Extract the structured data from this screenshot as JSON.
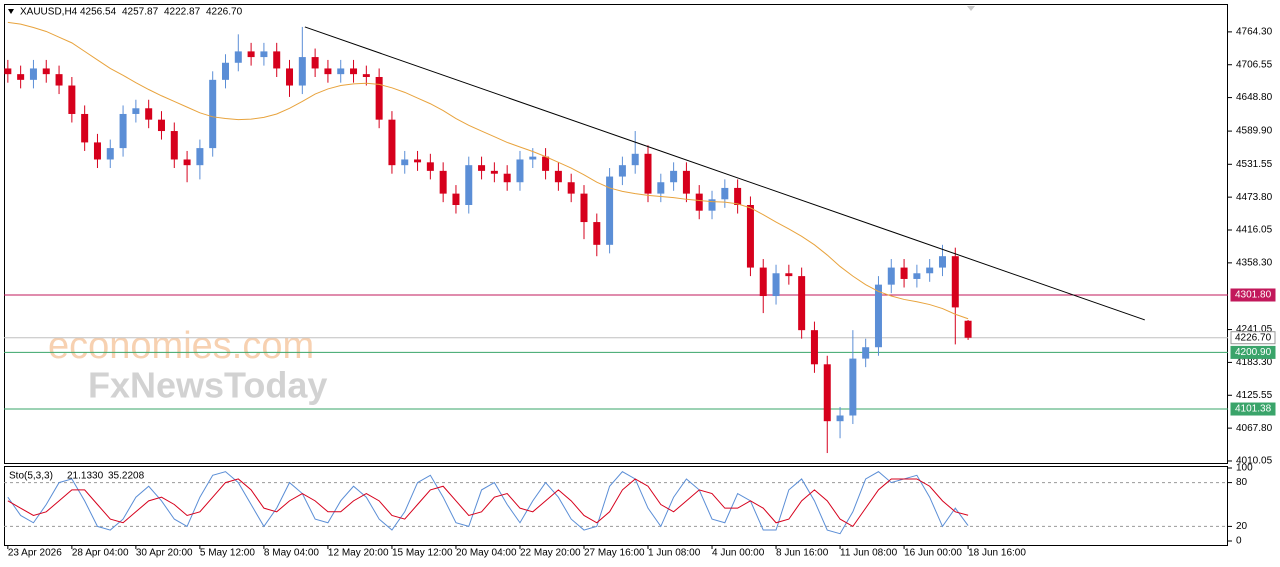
{
  "chart_data": {
    "type": "candlestick",
    "symbol": "XAUUSD,H4",
    "header_values": [
      4256.54,
      4257.87,
      4222.87,
      {
        "value": 4226.7,
        "label": "4226.70"
      }
    ],
    "watermarks": [
      "economies.com",
      "FxNewsToday"
    ],
    "categories": [
      "23 Apr 2026",
      null,
      null,
      null,
      null,
      "28 Apr 04:00",
      null,
      null,
      null,
      null,
      "30 Apr 20:00",
      null,
      null,
      null,
      null,
      "5 May 12:00",
      null,
      null,
      null,
      null,
      "8 May 04:00",
      null,
      null,
      null,
      null,
      "12 May 20:00",
      null,
      null,
      null,
      null,
      "15 May 12:00",
      null,
      null,
      null,
      null,
      "20 May 04:00",
      null,
      null,
      null,
      null,
      "22 May 20:00",
      null,
      null,
      null,
      null,
      "27 May 16:00",
      null,
      null,
      null,
      null,
      "1 Jun 08:00",
      null,
      null,
      null,
      null,
      "4 Jun 00:00",
      null,
      null,
      null,
      null,
      "8 Jun 16:00",
      null,
      null,
      null,
      null,
      "11 Jun 08:00",
      null,
      null,
      null,
      null,
      "16 Jun 00:00",
      null,
      null,
      null,
      null,
      "18 Jun 16:00"
    ],
    "open": [
      4700,
      4690,
      4680,
      4700,
      4690,
      4670,
      4620,
      4570,
      4540,
      4560,
      4620,
      4630,
      4610,
      4590,
      4540,
      4530,
      4560,
      4680,
      4710,
      4730,
      4720,
      4730,
      4700,
      4670,
      4720,
      4700,
      4690,
      4700,
      4690,
      4685,
      4610,
      4530,
      4540,
      4535,
      4520,
      4480,
      4460,
      4530,
      4520,
      4515,
      4500,
      4540,
      4545,
      4520,
      4500,
      4480,
      4430,
      4390,
      4510,
      4530,
      4550,
      4480,
      4500,
      4520,
      4480,
      4450,
      4470,
      4490,
      4460,
      4350,
      4300,
      4340,
      4335,
      4240,
      4180,
      4080,
      4090,
      4190,
      4210,
      4320,
      4350,
      4330,
      4340,
      4350,
      4370,
      4256.54
    ],
    "high": [
      4715,
      4705,
      4715,
      4715,
      4705,
      4685,
      4635,
      4585,
      4575,
      4635,
      4645,
      4645,
      4625,
      4605,
      4555,
      4575,
      4695,
      4725,
      4760,
      4745,
      4745,
      4745,
      4715,
      4773,
      4735,
      4715,
      4715,
      4715,
      4705,
      4700,
      4625,
      4555,
      4555,
      4550,
      4535,
      4495,
      4545,
      4545,
      4535,
      4530,
      4555,
      4560,
      4560,
      4535,
      4515,
      4495,
      4445,
      4525,
      4545,
      4590,
      4565,
      4515,
      4535,
      4535,
      4495,
      4485,
      4505,
      4505,
      4475,
      4365,
      4355,
      4355,
      4350,
      4255,
      4195,
      4105,
      4240,
      4225,
      4335,
      4365,
      4365,
      4355,
      4365,
      4390,
      4385,
      4257.87
    ],
    "low": [
      4675,
      4665,
      4665,
      4675,
      4655,
      4605,
      4555,
      4525,
      4525,
      4545,
      4605,
      4595,
      4575,
      4525,
      4500,
      4505,
      4545,
      4665,
      4695,
      4705,
      4705,
      4685,
      4650,
      4655,
      4685,
      4675,
      4675,
      4675,
      4670,
      4595,
      4515,
      4515,
      4520,
      4505,
      4465,
      4445,
      4445,
      4505,
      4500,
      4485,
      4485,
      4525,
      4505,
      4485,
      4465,
      4400,
      4370,
      4375,
      4495,
      4515,
      4465,
      4465,
      4485,
      4465,
      4435,
      4435,
      4455,
      4445,
      4335,
      4270,
      4285,
      4320,
      4225,
      4165,
      4024,
      4050,
      4075,
      4175,
      4195,
      4305,
      4315,
      4315,
      4325,
      4335,
      4215,
      4222.87
    ],
    "close": [
      4690,
      4680,
      4700,
      4690,
      4670,
      4620,
      4570,
      4540,
      4560,
      4620,
      4630,
      4610,
      4590,
      4540,
      4530,
      4560,
      4680,
      4710,
      4730,
      4720,
      4730,
      4700,
      4670,
      4720,
      4700,
      4690,
      4700,
      4690,
      4685,
      4610,
      4530,
      4540,
      4535,
      4520,
      4480,
      4460,
      4530,
      4520,
      4515,
      4500,
      4540,
      4545,
      4520,
      4500,
      4480,
      4430,
      4390,
      4510,
      4530,
      4550,
      4480,
      4500,
      4520,
      4480,
      4450,
      4470,
      4490,
      4460,
      4350,
      4300,
      4340,
      4335,
      4240,
      4180,
      4080,
      4090,
      4190,
      4210,
      4320,
      4350,
      4330,
      4340,
      4350,
      4370,
      4280,
      4226.7
    ],
    "bull_color": "#5b8ed6",
    "bear_color": "#d6001c",
    "ma": {
      "color": "#e8a33d",
      "values": [
        4781,
        4778,
        4772,
        4765,
        4755,
        4745,
        4730,
        4715,
        4700,
        4688,
        4675,
        4663,
        4652,
        4642,
        4632,
        4622,
        4615,
        4612,
        4610,
        4611,
        4614,
        4620,
        4630,
        4642,
        4655,
        4664,
        4670,
        4673,
        4674,
        4672,
        4666,
        4658,
        4648,
        4638,
        4626,
        4612,
        4600,
        4590,
        4580,
        4570,
        4562,
        4554,
        4545,
        4535,
        4525,
        4513,
        4500,
        4490,
        4484,
        4480,
        4477,
        4475,
        4473,
        4470,
        4468,
        4466,
        4465,
        4462,
        4455,
        4443,
        4430,
        4418,
        4405,
        4390,
        4372,
        4352,
        4335,
        4320,
        4308,
        4300,
        4294,
        4290,
        4285,
        4278,
        4268,
        4260
      ]
    },
    "trendline": {
      "color": "#000000",
      "x": [
        23.2,
        88.8
      ],
      "y": [
        4773,
        4258
      ]
    },
    "levels": [
      {
        "value": 4301.8,
        "label": "4301.80",
        "color": "#c2185b"
      },
      {
        "value": 4226.7,
        "label": "4226.70",
        "color": "#c0c0c0"
      },
      {
        "value": 4200.9,
        "label": "4200.90",
        "color": "#3aa46a"
      },
      {
        "value": 4101.38,
        "label": "4101.38",
        "color": "#3aa46a"
      }
    ],
    "xlim": [
      -0.3,
      95.3
    ],
    "ylim": [
      4006.5,
      4813.3
    ],
    "yticks": [
      {
        "value": 4764.3,
        "label": "4764.30"
      },
      {
        "value": 4706.55,
        "label": "4706.55"
      },
      {
        "value": 4648.8,
        "label": "4648.80"
      },
      {
        "value": 4589.9,
        "label": "4589.90"
      },
      {
        "value": 4531.55,
        "label": "4531.55"
      },
      {
        "value": 4473.8,
        "label": "4473.80"
      },
      {
        "value": 4416.05,
        "label": "4416.05"
      },
      {
        "value": 4358.3,
        "label": "4358.30"
      },
      {
        "value": 4241.05,
        "label": "4241.05"
      },
      {
        "value": 4183.3,
        "label": "4183.30"
      },
      {
        "value": 4125.55,
        "label": "4125.55"
      },
      {
        "value": 4067.8,
        "label": "4067.80"
      },
      {
        "value": 4010.05,
        "label": "4010.05"
      }
    ],
    "indicator": {
      "label": "Sto(5,3,3)",
      "readout": [
        {
          "value": 21.133,
          "label": "21.1330"
        },
        35.2208
      ],
      "ylim": [
        0,
        100
      ],
      "yticks": [
        0,
        20,
        80,
        100
      ],
      "levels": [
        20,
        80
      ],
      "series": [
        {
          "color": "#5b8ed6",
          "values": [
            60,
            35,
            25,
            50,
            80,
            85,
            55,
            20,
            15,
            30,
            60,
            75,
            55,
            30,
            20,
            60,
            90,
            95,
            80,
            50,
            20,
            45,
            80,
            65,
            30,
            25,
            55,
            75,
            60,
            30,
            15,
            40,
            80,
            90,
            60,
            25,
            20,
            70,
            80,
            50,
            25,
            55,
            80,
            60,
            30,
            15,
            20,
            75,
            95,
            85,
            45,
            20,
            60,
            85,
            70,
            30,
            25,
            65,
            55,
            15,
            15,
            70,
            85,
            55,
            15,
            10,
            40,
            85,
            95,
            80,
            85,
            90,
            60,
            20,
            45,
            21.133
          ]
        },
        {
          "color": "#d6001c",
          "values": [
            55,
            45,
            35,
            40,
            55,
            70,
            70,
            50,
            30,
            25,
            40,
            55,
            60,
            50,
            35,
            40,
            60,
            80,
            85,
            70,
            45,
            40,
            55,
            65,
            55,
            40,
            40,
            55,
            65,
            55,
            35,
            30,
            50,
            70,
            75,
            55,
            35,
            40,
            60,
            65,
            45,
            40,
            55,
            70,
            55,
            35,
            25,
            40,
            70,
            85,
            75,
            50,
            40,
            55,
            70,
            65,
            45,
            45,
            55,
            45,
            25,
            30,
            55,
            70,
            55,
            30,
            20,
            45,
            70,
            85,
            85,
            85,
            75,
            55,
            40,
            35.2208
          ]
        }
      ]
    }
  }
}
